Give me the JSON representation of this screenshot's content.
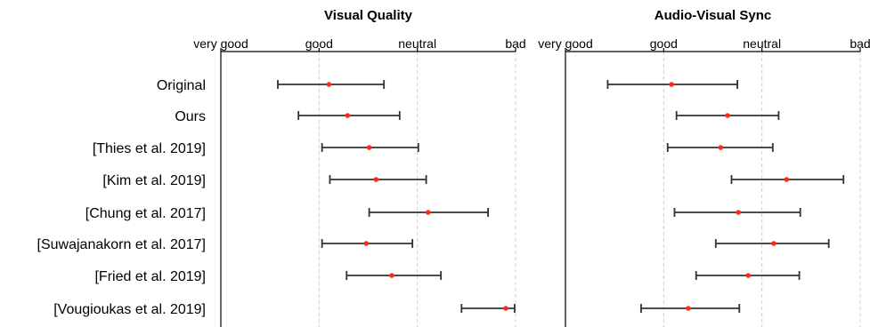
{
  "chart_data": [
    {
      "type": "scatter",
      "title": "Visual Quality",
      "ticks": [
        "very good",
        "good",
        "neutral",
        "bad"
      ],
      "xlim": [
        1,
        4
      ],
      "categories": [
        "Original",
        "Ours",
        "[Thies et al. 2019]",
        "[Kim et al. 2019]",
        "[Chung et al. 2017]",
        "[Suwajanakorn et al. 2017]",
        "[Fried et al. 2019]",
        "[Vougioukas et al. 2019]"
      ],
      "points": [
        {
          "mean": 2.1,
          "low": 1.58,
          "high": 2.66
        },
        {
          "mean": 2.29,
          "low": 1.79,
          "high": 2.82
        },
        {
          "mean": 2.51,
          "low": 2.03,
          "high": 3.01
        },
        {
          "mean": 2.58,
          "low": 2.11,
          "high": 3.09
        },
        {
          "mean": 3.11,
          "low": 2.51,
          "high": 3.72
        },
        {
          "mean": 2.48,
          "low": 2.03,
          "high": 2.95
        },
        {
          "mean": 2.74,
          "low": 2.28,
          "high": 3.24
        },
        {
          "mean": 3.9,
          "low": 3.45,
          "high": 3.99
        }
      ]
    },
    {
      "type": "scatter",
      "title": "Audio-Visual Sync",
      "ticks": [
        "very good",
        "good",
        "neutral",
        "bad"
      ],
      "xlim": [
        1,
        4
      ],
      "categories": [
        "Original",
        "Ours",
        "[Thies et al. 2019]",
        "[Kim et al. 2019]",
        "[Chung et al. 2017]",
        "[Suwajanakorn et al. 2017]",
        "[Fried et al. 2019]",
        "[Vougioukas et al. 2019]"
      ],
      "points": [
        {
          "mean": 2.08,
          "low": 1.43,
          "high": 2.75
        },
        {
          "mean": 2.65,
          "low": 2.13,
          "high": 3.17
        },
        {
          "mean": 2.58,
          "low": 2.04,
          "high": 3.11
        },
        {
          "mean": 3.25,
          "low": 2.69,
          "high": 3.83
        },
        {
          "mean": 2.76,
          "low": 2.11,
          "high": 3.39
        },
        {
          "mean": 3.12,
          "low": 2.53,
          "high": 3.68
        },
        {
          "mean": 2.86,
          "low": 2.33,
          "high": 3.38
        },
        {
          "mean": 2.25,
          "low": 1.77,
          "high": 2.77
        }
      ]
    }
  ]
}
